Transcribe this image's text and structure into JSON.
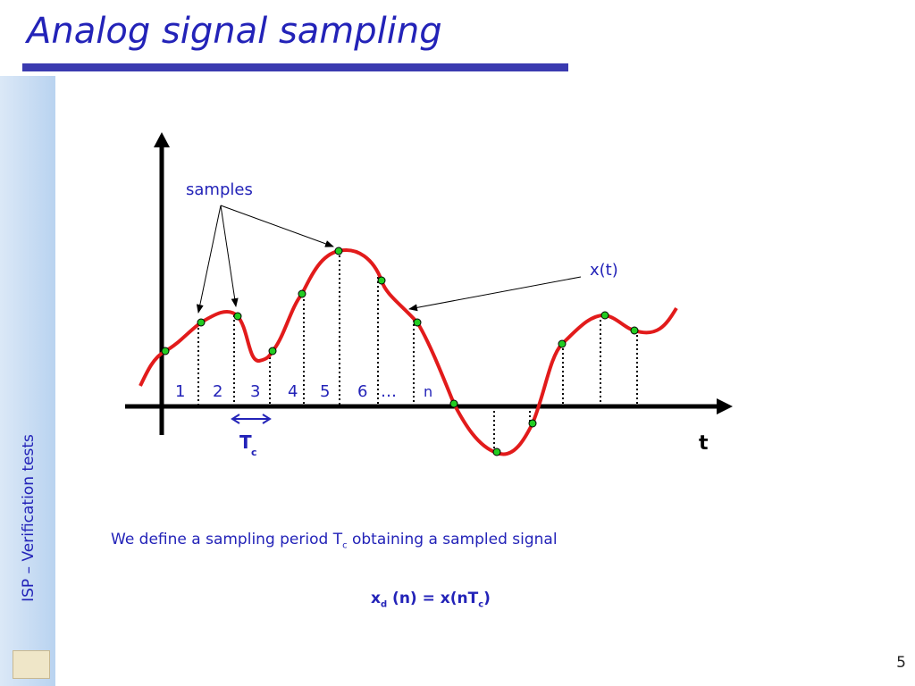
{
  "header": {
    "title": "Analog signal sampling"
  },
  "sidebar": {
    "label": "ISP – Verification tests"
  },
  "diagram": {
    "samples_label": "samples",
    "signal_label": "x(t)",
    "indices": [
      "1",
      "2",
      "3",
      "4",
      "5",
      "6",
      "…",
      "n"
    ],
    "period_label": {
      "main": "T",
      "sub": "c"
    },
    "time_label": "t"
  },
  "text": {
    "definition": {
      "before": "We define a sampling period T",
      "sub": "c",
      "after": " obtaining a sampled signal"
    },
    "formula": {
      "x": "x",
      "sub1": "d",
      "mid": " (n) = x(nT",
      "sub2": "c",
      "end": ")"
    }
  },
  "footer": {
    "page": "5"
  }
}
